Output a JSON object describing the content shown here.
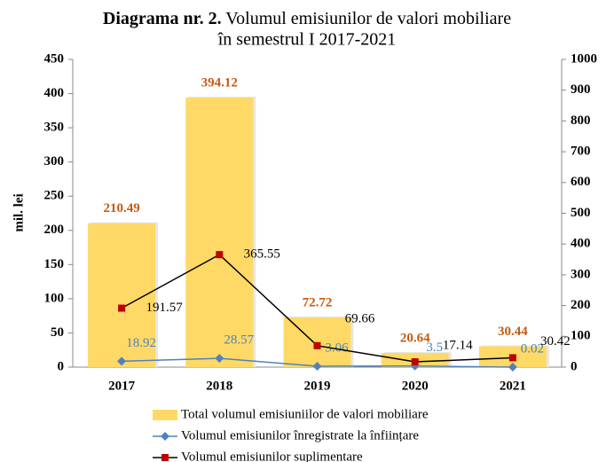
{
  "chart_data": {
    "type": "bar",
    "title": [
      "Diagrama nr. 2.",
      "Volumul emisiunilor de valori mobiliare",
      "în semestrul I 2017-2021"
    ],
    "ylabel": "mil. lei",
    "categories": [
      "2017",
      "2018",
      "2019",
      "2020",
      "2021"
    ],
    "series": [
      {
        "name": "Total volumul emisiuniilor de valori mobiliare",
        "type": "bar",
        "axis": "y",
        "color": "#ffd966",
        "label_color": "#c55a11",
        "values": [
          210.49,
          394.12,
          72.72,
          20.64,
          30.44
        ]
      },
      {
        "name": "Volumul emisiunilor înregistrate la înființare",
        "type": "line",
        "axis": "y2",
        "color": "#4f81bd",
        "label_color": "#4f81bd",
        "values": [
          18.92,
          28.57,
          3.06,
          3.5,
          0.02
        ]
      },
      {
        "name": "Volumul emisiunilor suplimentare",
        "type": "line",
        "axis": "y2",
        "color": "#000000",
        "marker_color": "#c00000",
        "label_color": "#000000",
        "values": [
          191.57,
          365.55,
          69.66,
          17.14,
          30.42
        ]
      }
    ],
    "ylim": [
      0,
      450
    ],
    "yticks": [
      0,
      50,
      100,
      150,
      200,
      250,
      300,
      350,
      400,
      450
    ],
    "y2lim": [
      0,
      1000
    ],
    "y2ticks": [
      0,
      100,
      200,
      300,
      400,
      500,
      600,
      700,
      800,
      900,
      1000
    ],
    "grid": false,
    "legend": "bottom"
  }
}
